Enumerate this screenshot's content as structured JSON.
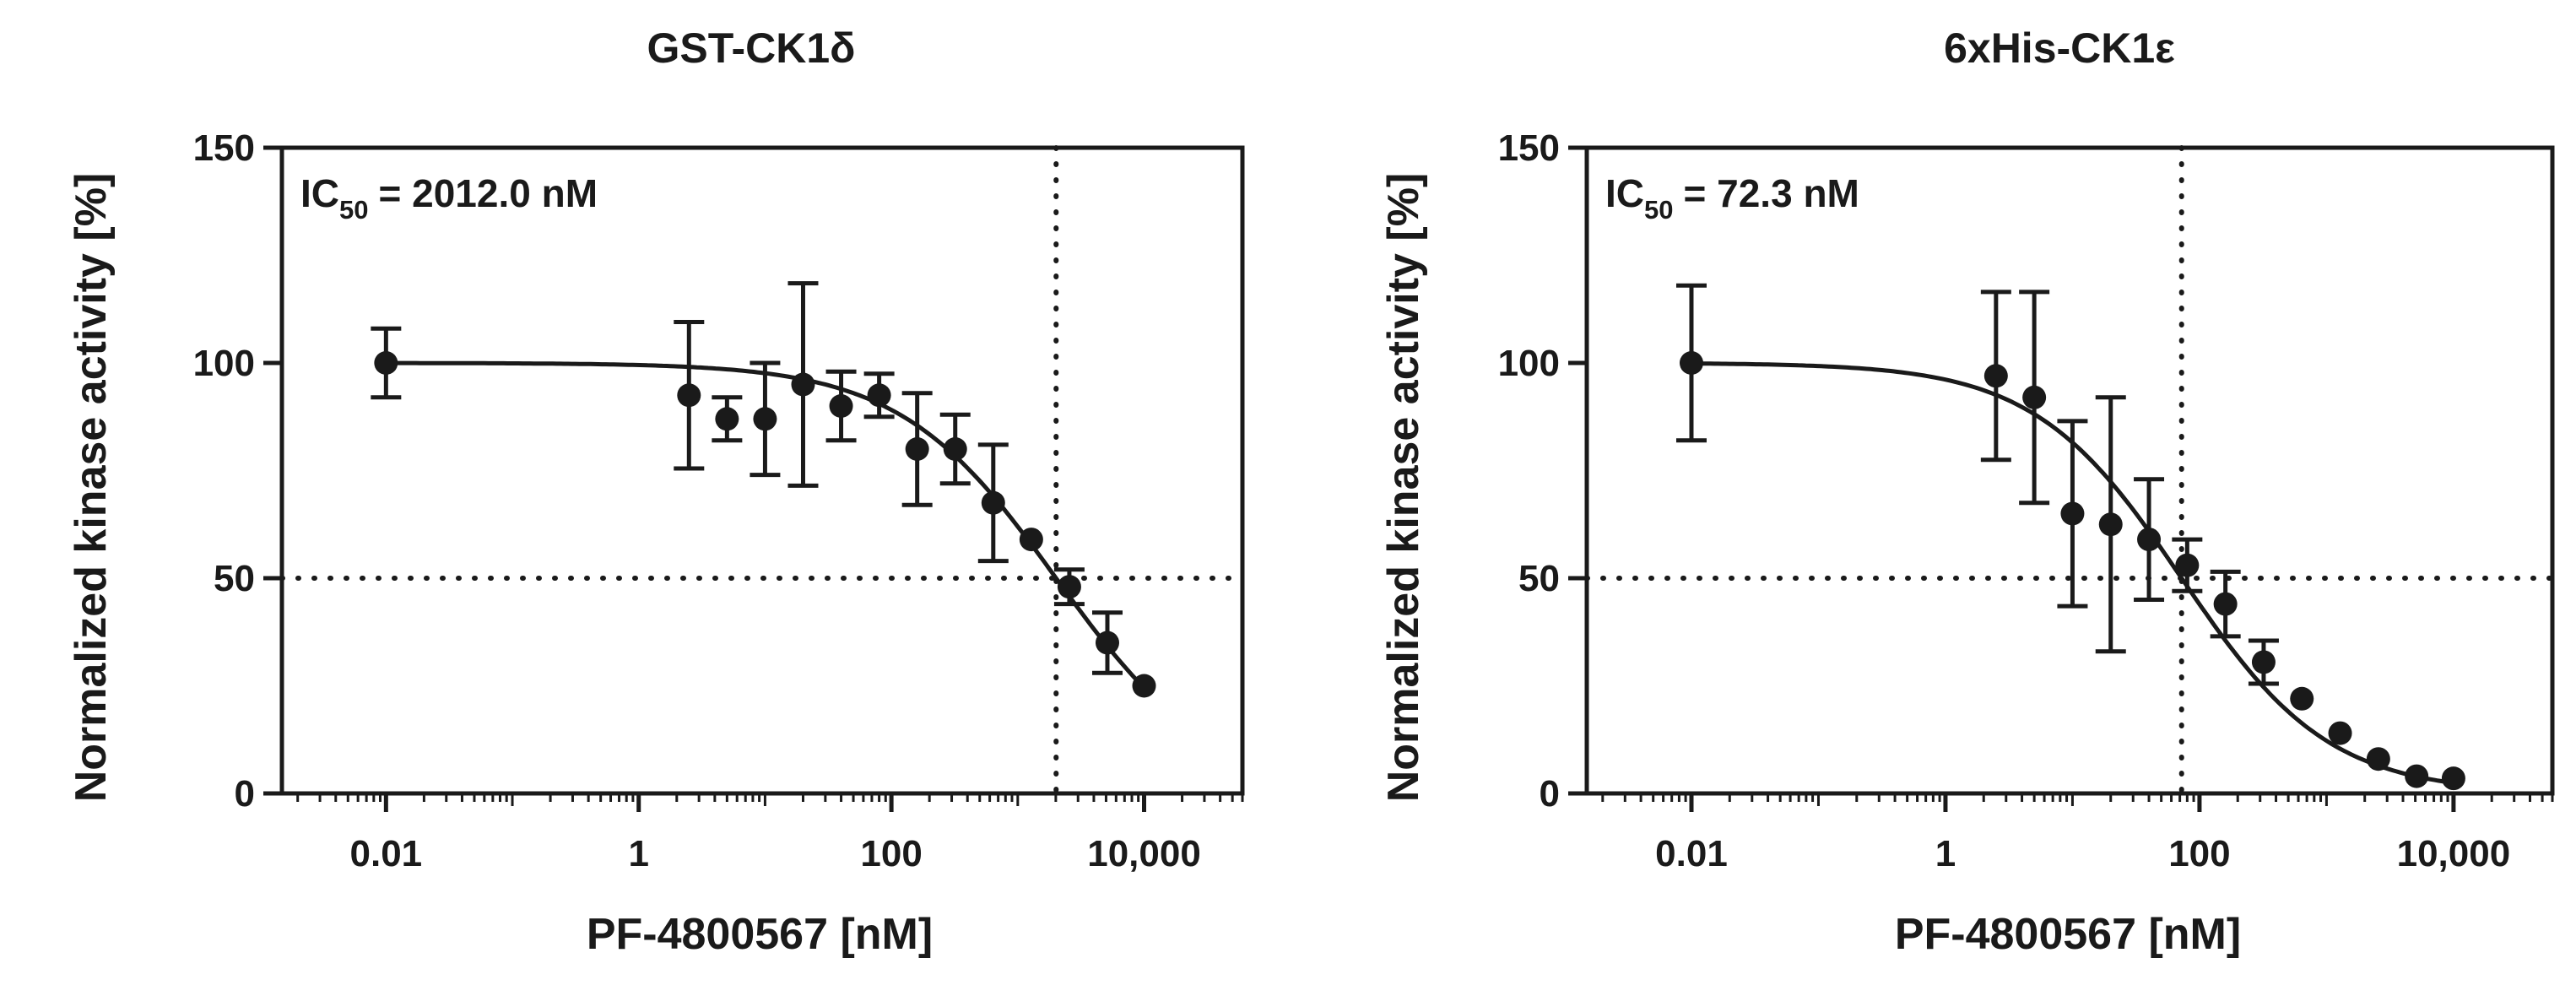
{
  "chart_data": [
    {
      "type": "scatter",
      "title": "GST-CK1δ",
      "xlabel": "PF-4800567 [nM]",
      "ylabel": "Normalized kinase activity [%]",
      "xscale": "log",
      "xlim": [
        0.0015,
        60000
      ],
      "ylim": [
        0,
        150
      ],
      "x_ticks": [
        0.01,
        1,
        100,
        10000
      ],
      "x_tick_labels": [
        "0.01",
        "1",
        "100",
        "10,000"
      ],
      "y_ticks": [
        0,
        50,
        100,
        150
      ],
      "y_tick_labels": [
        "0",
        "50",
        "100",
        "150"
      ],
      "ic50_prefix": "IC",
      "ic50_subscript": "50",
      "ic50_value": "= 2012.0 nM",
      "ic50_nM": 2012.0,
      "reference_line_y": 50,
      "fit_curve": {
        "model": "four-parameter logistic",
        "top": 100,
        "bottom": 0,
        "ic50": 2012.0,
        "hill": 0.7
      },
      "series": [
        {
          "name": "GST-CK1δ",
          "x": [
            0.01,
            2.5,
            5,
            10,
            20,
            40,
            80,
            160,
            320,
            640,
            1280,
            2560,
            5120,
            10000
          ],
          "y": [
            100,
            92.5,
            87,
            87,
            95,
            90,
            92.5,
            80,
            80,
            67.5,
            59,
            48,
            35,
            25
          ],
          "y_err": [
            8,
            17,
            5,
            13,
            23.5,
            8,
            5,
            13,
            8,
            13.5,
            0,
            4,
            7,
            0
          ]
        }
      ]
    },
    {
      "type": "scatter",
      "title": "6xHis-CK1ε",
      "xlabel": "PF-4800567 [nM]",
      "ylabel": "Normalized kinase activity [%]",
      "xscale": "log",
      "xlim": [
        0.0015,
        60000
      ],
      "ylim": [
        0,
        150
      ],
      "x_ticks": [
        0.01,
        1,
        100,
        10000
      ],
      "x_tick_labels": [
        "0.01",
        "1",
        "100",
        "10,000"
      ],
      "y_ticks": [
        0,
        50,
        100,
        150
      ],
      "y_tick_labels": [
        "0",
        "50",
        "100",
        "150"
      ],
      "ic50_prefix": "IC",
      "ic50_subscript": "50",
      "ic50_value": "= 72.3 nM",
      "ic50_nM": 72.3,
      "reference_line_y": 50,
      "fit_curve": {
        "model": "four-parameter logistic",
        "top": 100,
        "bottom": 0,
        "ic50": 72.3,
        "hill": 0.75
      },
      "series": [
        {
          "name": "6xHis-CK1ε",
          "x": [
            0.01,
            2.5,
            5,
            10,
            20,
            40,
            80,
            160,
            320,
            640,
            1280,
            2560,
            5120,
            10000
          ],
          "y": [
            100,
            97,
            92,
            65,
            62.5,
            59,
            53,
            44,
            30.5,
            22,
            14,
            8,
            4,
            3.5
          ],
          "y_err": [
            18,
            19.5,
            24.5,
            21.5,
            29.5,
            14,
            6,
            7.5,
            5,
            0,
            0,
            0,
            0,
            0
          ]
        }
      ]
    }
  ]
}
